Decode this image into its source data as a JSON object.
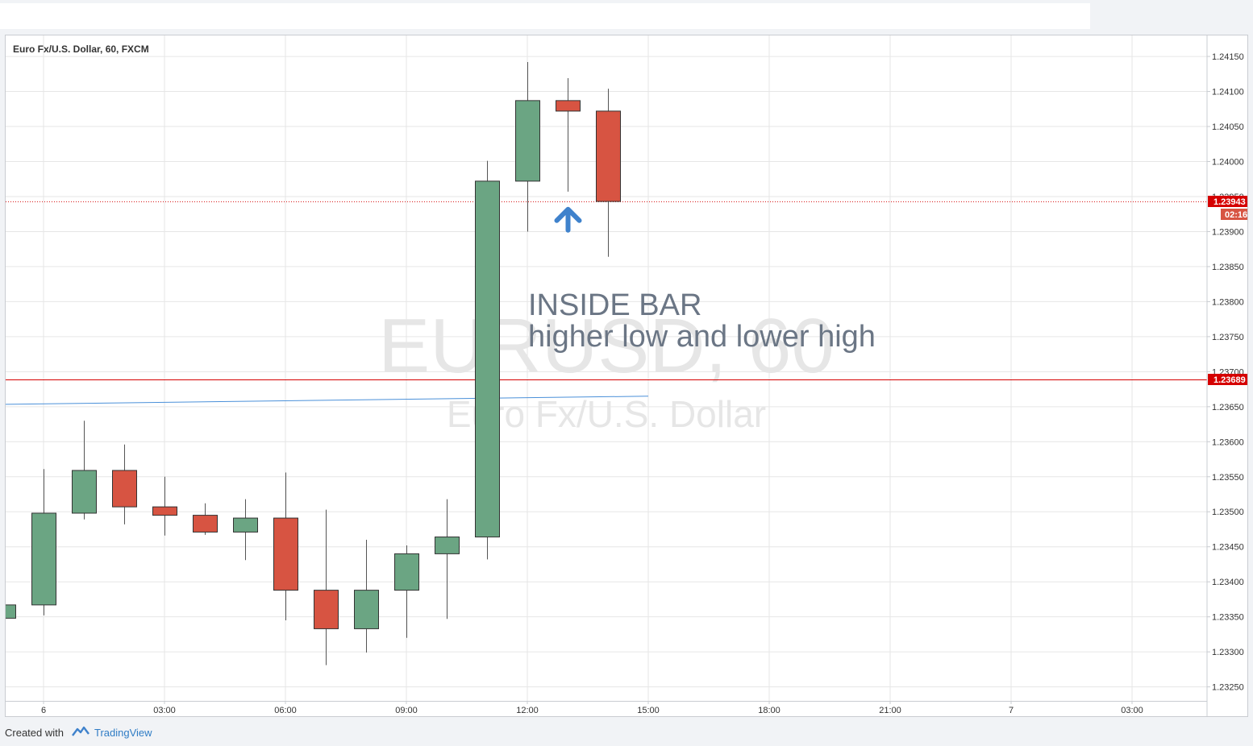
{
  "header": {
    "symbol_title": "Euro Fx/U.S. Dollar, 60, FXCM"
  },
  "watermark": {
    "symbol": "EURUSD, 60",
    "description": "Euro Fx/U.S. Dollar"
  },
  "annotation": {
    "line1": "INSIDE BAR",
    "line2": "higher low and lower high",
    "arrow_icon": "arrow-up-icon"
  },
  "footer": {
    "created_with": "Created with",
    "brand": "TradingView",
    "logo_icon": "tradingview-logo-icon"
  },
  "colors": {
    "up": "#6ba583",
    "down": "#d75442",
    "grid": "#e6e6e6",
    "hline": "#d50000",
    "trendline": "#4a90d9",
    "arrow": "#3f82cc",
    "annotation_text": "#6b7685",
    "watermark": "#e6e6e6"
  },
  "chart_data": {
    "type": "candlestick",
    "ylim": [
      1.2323,
      1.2418
    ],
    "yticks": [
      "1.23250",
      "1.23300",
      "1.23350",
      "1.23400",
      "1.23450",
      "1.23500",
      "1.23550",
      "1.23600",
      "1.23650",
      "1.23700",
      "1.23750",
      "1.23800",
      "1.23850",
      "1.23900",
      "1.23950",
      "1.24000",
      "1.24050",
      "1.24100",
      "1.24150"
    ],
    "xticks": [
      {
        "label": "6",
        "index": 1
      },
      {
        "label": "03:00",
        "index": 4
      },
      {
        "label": "06:00",
        "index": 7
      },
      {
        "label": "09:00",
        "index": 10
      },
      {
        "label": "12:00",
        "index": 13
      },
      {
        "label": "15:00",
        "index": 16
      },
      {
        "label": "18:00",
        "index": 19
      },
      {
        "label": "21:00",
        "index": 22
      },
      {
        "label": "7",
        "index": 25
      },
      {
        "label": "03:00",
        "index": 28
      }
    ],
    "candles": [
      {
        "o": 1.23348,
        "h": 1.23368,
        "l": 1.23348,
        "c": 1.23367
      },
      {
        "o": 1.23367,
        "h": 1.23561,
        "l": 1.23352,
        "c": 1.23498
      },
      {
        "o": 1.23498,
        "h": 1.2363,
        "l": 1.23489,
        "c": 1.23559
      },
      {
        "o": 1.23559,
        "h": 1.23596,
        "l": 1.23482,
        "c": 1.23507
      },
      {
        "o": 1.23507,
        "h": 1.2355,
        "l": 1.23466,
        "c": 1.23495
      },
      {
        "o": 1.23495,
        "h": 1.23512,
        "l": 1.23467,
        "c": 1.23471
      },
      {
        "o": 1.23471,
        "h": 1.23518,
        "l": 1.23431,
        "c": 1.23491
      },
      {
        "o": 1.23491,
        "h": 1.23556,
        "l": 1.23345,
        "c": 1.23388
      },
      {
        "o": 1.23388,
        "h": 1.23503,
        "l": 1.23281,
        "c": 1.23333
      },
      {
        "o": 1.23333,
        "h": 1.2346,
        "l": 1.23299,
        "c": 1.23388
      },
      {
        "o": 1.23388,
        "h": 1.23452,
        "l": 1.2332,
        "c": 1.2344
      },
      {
        "o": 1.2344,
        "h": 1.23518,
        "l": 1.23347,
        "c": 1.23464
      },
      {
        "o": 1.23464,
        "h": 1.24001,
        "l": 1.23432,
        "c": 1.23972
      },
      {
        "o": 1.23972,
        "h": 1.24142,
        "l": 1.239,
        "c": 1.24087
      },
      {
        "o": 1.24087,
        "h": 1.24119,
        "l": 1.23957,
        "c": 1.24072
      },
      {
        "o": 1.24072,
        "h": 1.24104,
        "l": 1.23864,
        "c": 1.23943
      }
    ],
    "hlines": [
      {
        "price": 1.23943,
        "label": "1.23943",
        "style": "dotted"
      },
      {
        "price": 1.23689,
        "label": "1.23689",
        "style": "solid"
      }
    ],
    "countdown_label": "02:16",
    "trendline": {
      "from": {
        "index": -1,
        "price": 1.23653
      },
      "to": {
        "index": 16,
        "price": 1.23665
      }
    },
    "arrow_marker": {
      "index": 14,
      "price": 1.23925
    }
  }
}
